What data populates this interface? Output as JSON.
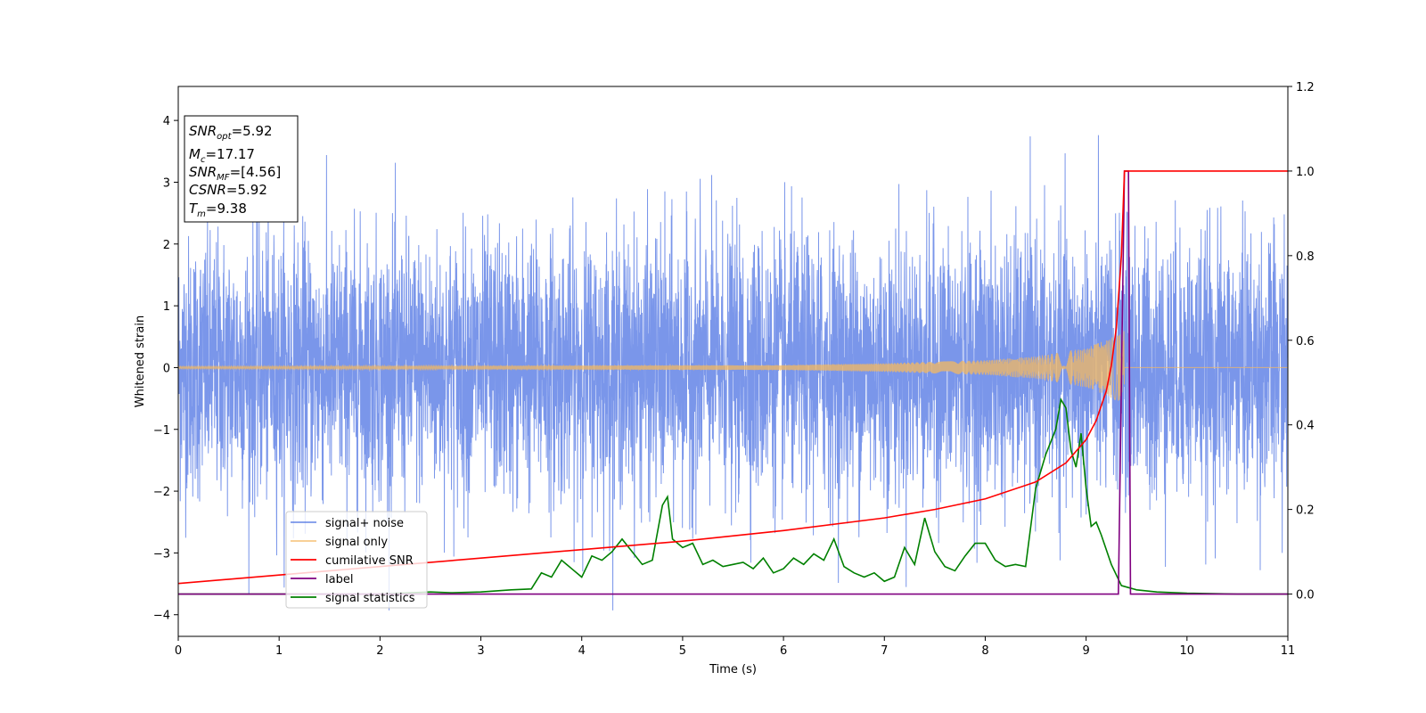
{
  "chart_data": {
    "type": "line",
    "xlabel": "Time (s)",
    "ylabel": "Whitened strain",
    "xlim": [
      0,
      11
    ],
    "ylim_left": [
      -4.35,
      4.55
    ],
    "ylim_right": [
      -0.1,
      1.2
    ],
    "x_ticks": [
      0,
      1,
      2,
      3,
      4,
      5,
      6,
      7,
      8,
      9,
      10,
      11
    ],
    "y_ticks_left": [
      -4,
      -3,
      -2,
      -1,
      0,
      1,
      2,
      3,
      4
    ],
    "y_ticks_right": [
      0.0,
      0.2,
      0.4,
      0.6,
      0.8,
      1.0,
      1.2
    ],
    "legend_position": "lower-left",
    "info_box": [
      {
        "base": "SNR",
        "sub": "opt",
        "value": "=5.92"
      },
      {
        "base": "M",
        "sub": "c",
        "value": "=17.17"
      },
      {
        "base": "SNR",
        "sub": "MF",
        "value": "=[4.56]"
      },
      {
        "base": "CSNR",
        "sub": "",
        "value": "=5.92"
      },
      {
        "base": "T",
        "sub": "m",
        "value": "=9.38"
      }
    ],
    "series": [
      {
        "name": "signal+ noise",
        "axis": "left",
        "color": "#4169e1",
        "style": "dense noise, amplitude about ±2.3, peaks to ±4.2",
        "x_range": [
          0,
          11
        ],
        "approx_extremes": {
          "max": 4.18,
          "min": -3.93
        }
      },
      {
        "name": "signal only",
        "axis": "left",
        "color": "#f4b860",
        "style": "chirp",
        "merger_time": 9.38,
        "envelope": {
          "x": [
            0,
            6,
            7,
            8,
            8.5,
            9.0,
            9.2,
            9.38,
            9.4,
            11
          ],
          "amp": [
            0.02,
            0.04,
            0.07,
            0.12,
            0.18,
            0.32,
            0.45,
            0.6,
            0,
            0
          ]
        }
      },
      {
        "name": "cumilative SNR",
        "axis": "right",
        "color": "#ff0000",
        "x": [
          0,
          1,
          2,
          3,
          4,
          5,
          6,
          7,
          7.5,
          8,
          8.5,
          8.8,
          9.0,
          9.1,
          9.2,
          9.25,
          9.3,
          9.35,
          9.38,
          11
        ],
        "values": [
          0.025,
          0.045,
          0.065,
          0.085,
          0.105,
          0.125,
          0.15,
          0.18,
          0.2,
          0.225,
          0.265,
          0.31,
          0.365,
          0.41,
          0.48,
          0.54,
          0.63,
          0.8,
          1.0,
          1.0
        ]
      },
      {
        "name": "label",
        "axis": "right",
        "color": "#800080",
        "x": [
          0,
          9.32,
          9.38,
          9.42,
          9.44,
          11
        ],
        "values": [
          0,
          0,
          1.0,
          1.0,
          0,
          0
        ]
      },
      {
        "name": "signal statistics",
        "axis": "right",
        "color": "#008000",
        "x": [
          0,
          1,
          2,
          2.5,
          2.7,
          3.0,
          3.3,
          3.5,
          3.6,
          3.7,
          3.8,
          3.9,
          4.0,
          4.1,
          4.2,
          4.3,
          4.4,
          4.5,
          4.6,
          4.7,
          4.8,
          4.85,
          4.9,
          5.0,
          5.1,
          5.2,
          5.3,
          5.4,
          5.5,
          5.6,
          5.7,
          5.8,
          5.9,
          6.0,
          6.1,
          6.2,
          6.3,
          6.4,
          6.5,
          6.6,
          6.7,
          6.8,
          6.9,
          7.0,
          7.1,
          7.2,
          7.3,
          7.4,
          7.5,
          7.6,
          7.7,
          7.8,
          7.9,
          8.0,
          8.1,
          8.2,
          8.3,
          8.4,
          8.5,
          8.6,
          8.7,
          8.75,
          8.8,
          8.85,
          8.9,
          8.95,
          9.0,
          9.05,
          9.1,
          9.15,
          9.25,
          9.35,
          9.5,
          9.7,
          10.0,
          10.5,
          11
        ],
        "values": [
          0.0,
          0.0,
          0.0,
          0.005,
          0.003,
          0.005,
          0.01,
          0.012,
          0.05,
          0.04,
          0.08,
          0.06,
          0.04,
          0.09,
          0.08,
          0.1,
          0.13,
          0.1,
          0.07,
          0.08,
          0.21,
          0.23,
          0.13,
          0.11,
          0.12,
          0.07,
          0.08,
          0.065,
          0.07,
          0.075,
          0.06,
          0.085,
          0.05,
          0.06,
          0.085,
          0.07,
          0.095,
          0.08,
          0.13,
          0.065,
          0.05,
          0.04,
          0.05,
          0.03,
          0.04,
          0.11,
          0.07,
          0.18,
          0.1,
          0.065,
          0.055,
          0.09,
          0.12,
          0.12,
          0.08,
          0.065,
          0.07,
          0.065,
          0.25,
          0.33,
          0.39,
          0.46,
          0.44,
          0.34,
          0.3,
          0.38,
          0.25,
          0.16,
          0.17,
          0.14,
          0.07,
          0.02,
          0.01,
          0.005,
          0.002,
          0.0,
          0.0
        ]
      }
    ]
  }
}
